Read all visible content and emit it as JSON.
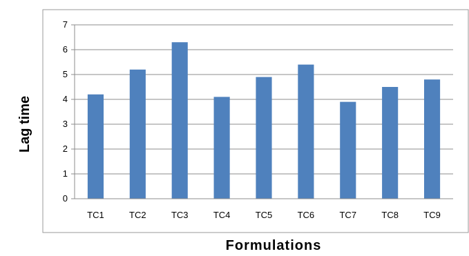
{
  "chart_data": {
    "type": "bar",
    "title": "",
    "xlabel": "Formulations",
    "ylabel": "Lag time",
    "categories": [
      "TC1",
      "TC2",
      "TC3",
      "TC4",
      "TC5",
      "TC6",
      "TC7",
      "TC8",
      "TC9"
    ],
    "values": [
      4.2,
      5.2,
      6.3,
      4.1,
      4.9,
      5.4,
      3.9,
      4.5,
      4.8
    ],
    "ylim": [
      0,
      7
    ],
    "yticks": [
      "0",
      "1",
      "2",
      "3",
      "4",
      "5",
      "6",
      "7"
    ],
    "grid": true,
    "legend": "none",
    "colors": {
      "bar": "#4F81BD",
      "grid": "#8C8C8C",
      "axis": "#8C8C8C",
      "frame": "#9A9A9A",
      "text": "#000000"
    }
  }
}
